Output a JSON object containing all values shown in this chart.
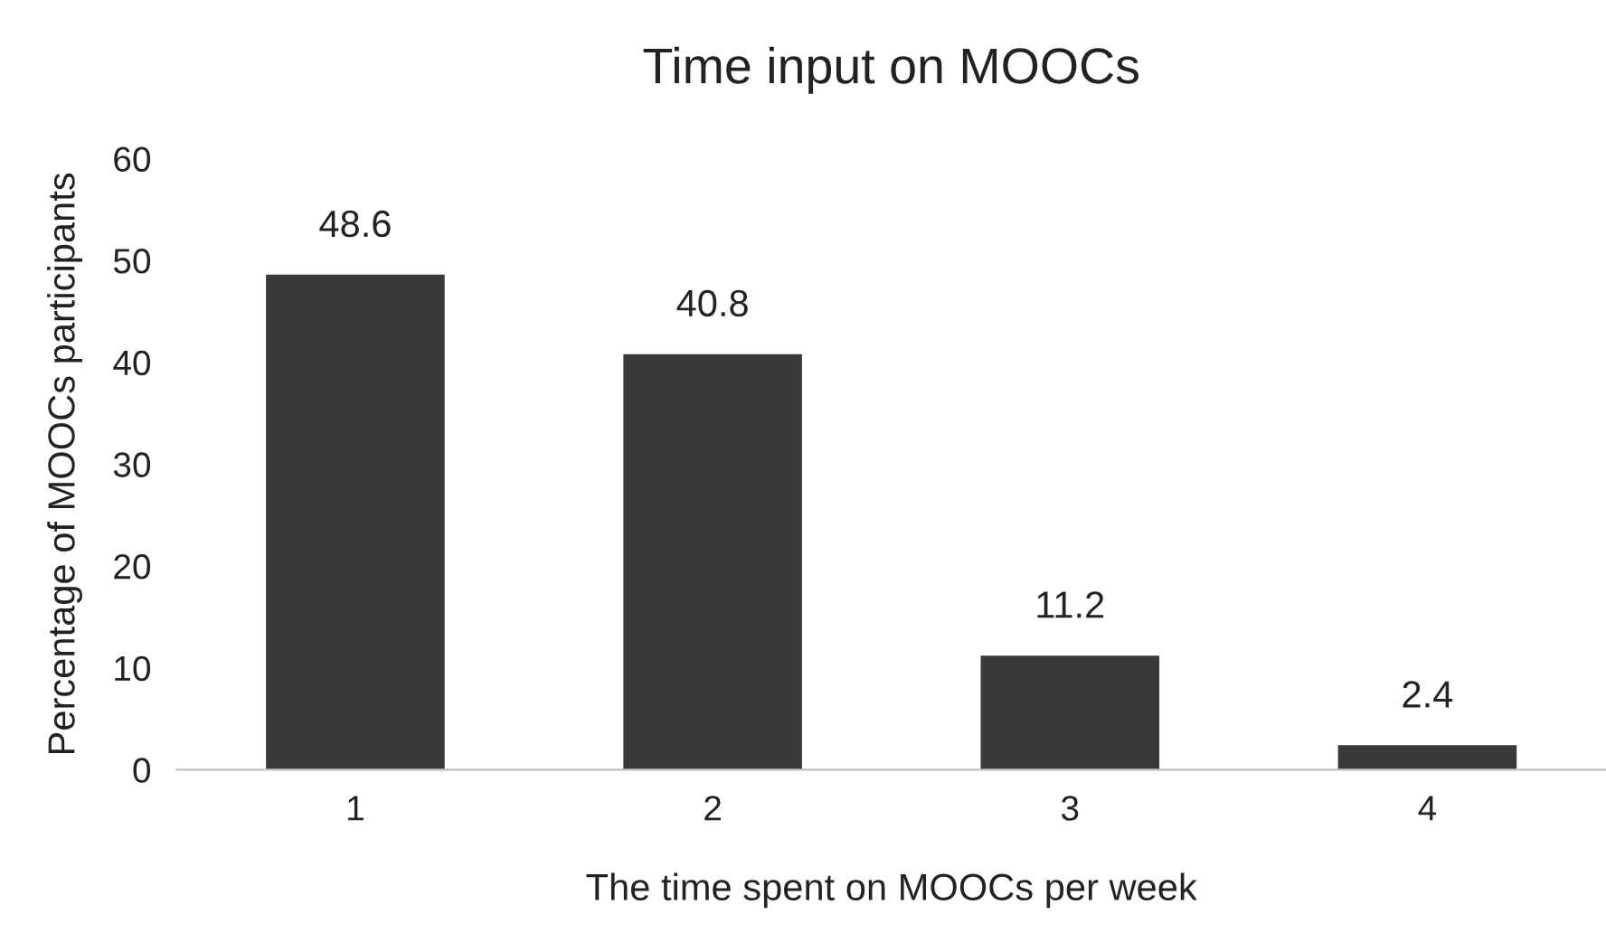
{
  "chart_data": {
    "type": "bar",
    "title": "Time input on MOOCs",
    "xlabel": "The time spent on MOOCs per week",
    "ylabel": "Percentage of MOOCs participants",
    "categories": [
      "1",
      "2",
      "3",
      "4"
    ],
    "values": [
      48.6,
      40.8,
      11.2,
      2.4
    ],
    "color": "#3a3a3a",
    "ylim": [
      0,
      60
    ],
    "yticks": [
      0,
      10,
      20,
      30,
      40,
      50,
      60
    ],
    "data_labels": true,
    "grid": false,
    "legend": false
  }
}
